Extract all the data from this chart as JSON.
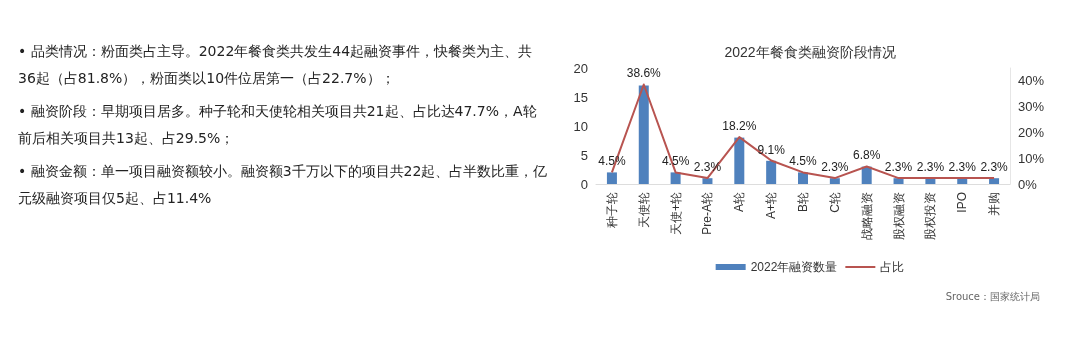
{
  "chart_data": {
    "type": "bar",
    "title": "2022年餐食类融资阶段情况",
    "categories": [
      "种子轮",
      "天使轮",
      "天使+轮",
      "Pre-A轮",
      "A轮",
      "A+轮",
      "B轮",
      "C轮",
      "战略融资",
      "股权融资",
      "股权投资",
      "IPO",
      "并购"
    ],
    "series": [
      {
        "name": "2022年融资数量",
        "color": "#4f81bd",
        "values": [
          2,
          17,
          2,
          1,
          8,
          4,
          2,
          1,
          3,
          1,
          1,
          1,
          1
        ]
      },
      {
        "name": "占比",
        "type": "line",
        "axis": "y2",
        "color": "#b85450",
        "values": [
          4.5,
          38.6,
          4.5,
          2.3,
          18.2,
          9.1,
          4.5,
          2.3,
          6.8,
          2.3,
          2.3,
          2.3,
          2.3
        ],
        "value_labels": [
          "4.5%",
          "38.6%",
          "4.5%",
          "2.3%",
          "18.2%",
          "9.1%",
          "4.5%",
          "2.3%",
          "6.8%",
          "2.3%",
          "2.3%",
          "2.3%",
          "2.3%"
        ]
      }
    ],
    "ylim": [
      0,
      20
    ],
    "yticks": [
      0,
      5,
      10,
      15,
      20
    ],
    "y2lim": [
      0,
      45
    ],
    "y2ticks": [
      {
        "value": 0,
        "label": "0%"
      },
      {
        "value": 10,
        "label": "10%"
      },
      {
        "value": 20,
        "label": "20%"
      },
      {
        "value": 30,
        "label": "30%"
      },
      {
        "value": 40,
        "label": "40%"
      }
    ],
    "grid": false,
    "legend": "bottom",
    "marker": "none",
    "line_style": "solid",
    "annotations": [
      "• 品类情况：粉面类占主导。2022年餐食类共发生44起融资事件，快餐类为主、共36起（占81.8%），粉面类以10件位居第一（占22.7%）；",
      "• 融资阶段：早期项目居多。种子轮和天使轮相关项目共21起、占比达47.7%，A轮前后相关项目共13起、占29.5%；",
      "• 融资金额：单一项目融资额较小。融资额3千万以下的项目共22起、占半数比重，亿元级融资项目仅5起、占11.4%",
      "Srouce：国家统计局"
    ]
  }
}
